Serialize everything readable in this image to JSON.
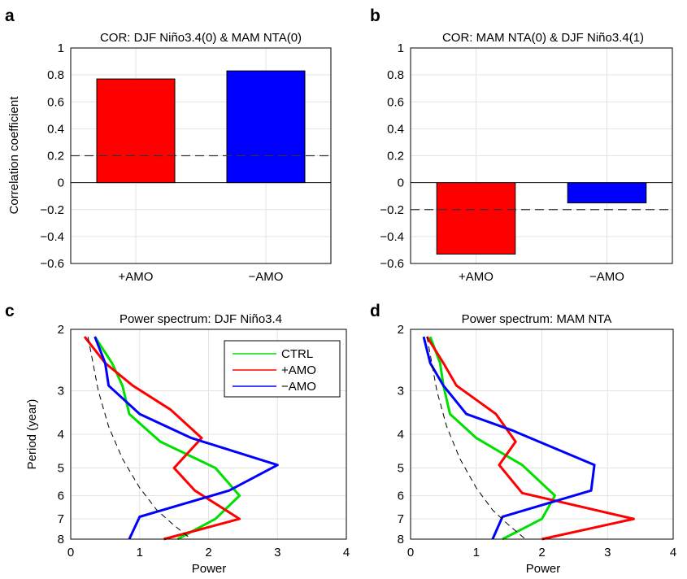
{
  "chart_data": [
    {
      "panel": "a",
      "type": "bar",
      "title": "COR: DJF Niño3.4(0) & MAM NTA(0)",
      "ylabel": "Correlation coefficient",
      "xlabel": "",
      "categories": [
        "+AMO",
        "−AMO"
      ],
      "values": [
        0.77,
        0.83
      ],
      "colors": [
        "#ff0000",
        "#0000ff"
      ],
      "ylim": [
        -0.6,
        1
      ],
      "yticks": [
        -0.6,
        -0.4,
        -0.2,
        0,
        0.2,
        0.4,
        0.6,
        0.8,
        1
      ],
      "ytick_labels": [
        "−0.6",
        "−0.4",
        "−0.2",
        "0",
        "0.2",
        "0.4",
        "0.6",
        "0.8",
        "1"
      ],
      "reference_line": 0.2,
      "grid": true
    },
    {
      "panel": "b",
      "type": "bar",
      "title": "COR: MAM NTA(0) & DJF Niño3.4(1)",
      "ylabel": "",
      "xlabel": "",
      "categories": [
        "+AMO",
        "−AMO"
      ],
      "values": [
        -0.53,
        -0.15
      ],
      "colors": [
        "#ff0000",
        "#0000ff"
      ],
      "ylim": [
        -0.6,
        1
      ],
      "yticks": [
        -0.6,
        -0.4,
        -0.2,
        0,
        0.2,
        0.4,
        0.6,
        0.8,
        1
      ],
      "ytick_labels": [
        "−0.6",
        "−0.4",
        "−0.2",
        "0",
        "0.2",
        "0.4",
        "0.6",
        "0.8",
        "1"
      ],
      "reference_line": -0.2,
      "grid": true
    },
    {
      "panel": "c",
      "type": "line",
      "title": "Power spectrum: DJF Niño3.4",
      "xlabel": "Power",
      "ylabel": "Period (year)",
      "xlim": [
        0,
        4
      ],
      "ylim": [
        2,
        8
      ],
      "xticks": [
        0,
        1,
        2,
        3,
        4
      ],
      "yticks": [
        2,
        3,
        4,
        5,
        6,
        7,
        8
      ],
      "y_scale": "log",
      "y_reversed": true,
      "legend": "top-right",
      "grid": true,
      "series": [
        {
          "name": "CTRL",
          "color": "#00e000",
          "x": [
            0.35,
            0.6,
            0.75,
            0.85,
            1.3,
            2.1,
            2.45,
            2.1,
            1.55
          ],
          "y": [
            2.1,
            2.5,
            2.9,
            3.5,
            4.2,
            5.0,
            6.0,
            7.0,
            8.0
          ]
        },
        {
          "name": "+AMO",
          "color": "#ff0000",
          "x": [
            0.2,
            0.5,
            0.9,
            1.45,
            1.9,
            1.5,
            1.8,
            2.45,
            1.35
          ],
          "y": [
            2.1,
            2.5,
            2.9,
            3.4,
            4.1,
            5.0,
            5.8,
            7.0,
            8.0
          ]
        },
        {
          "name": "−AMO",
          "color": "#0000ff",
          "x": [
            0.35,
            0.5,
            0.55,
            1.0,
            1.75,
            3.0,
            2.3,
            1.0,
            0.85
          ],
          "y": [
            2.1,
            2.5,
            2.9,
            3.5,
            4.1,
            4.9,
            5.8,
            6.9,
            8.0
          ]
        },
        {
          "name": "",
          "color": "#000000",
          "dashed": true,
          "x": [
            0.25,
            0.4,
            0.55,
            0.75,
            1.0,
            1.25,
            1.5,
            1.75
          ],
          "y": [
            2.1,
            3.0,
            3.8,
            4.7,
            5.7,
            6.6,
            7.3,
            8.0
          ]
        }
      ]
    },
    {
      "panel": "d",
      "type": "line",
      "title": "Power spectrum: MAM NTA",
      "xlabel": "Power",
      "ylabel": "",
      "xlim": [
        0,
        4
      ],
      "ylim": [
        2,
        8
      ],
      "xticks": [
        0,
        1,
        2,
        3,
        4
      ],
      "yticks": [
        2,
        3,
        4,
        5,
        6,
        7,
        8
      ],
      "y_scale": "log",
      "y_reversed": true,
      "grid": true,
      "series": [
        {
          "name": "CTRL",
          "color": "#00e000",
          "x": [
            0.3,
            0.45,
            0.5,
            0.6,
            1.0,
            1.7,
            2.2,
            2.0,
            1.4
          ],
          "y": [
            2.1,
            2.5,
            2.9,
            3.5,
            4.1,
            4.9,
            6.0,
            7.0,
            8.0
          ]
        },
        {
          "name": "+AMO",
          "color": "#ff0000",
          "x": [
            0.25,
            0.5,
            0.7,
            1.3,
            1.6,
            1.35,
            1.7,
            3.4,
            2.0
          ],
          "y": [
            2.1,
            2.5,
            2.9,
            3.5,
            4.2,
            4.9,
            5.9,
            7.0,
            8.0
          ]
        },
        {
          "name": "−AMO",
          "color": "#0000ff",
          "x": [
            0.2,
            0.3,
            0.5,
            0.85,
            1.55,
            2.8,
            2.75,
            1.4,
            1.25
          ],
          "y": [
            2.1,
            2.5,
            2.9,
            3.5,
            3.9,
            4.9,
            5.8,
            6.9,
            8.0
          ]
        },
        {
          "name": "",
          "color": "#000000",
          "dashed": true,
          "x": [
            0.25,
            0.4,
            0.55,
            0.75,
            1.0,
            1.25,
            1.5,
            1.75
          ],
          "y": [
            2.1,
            3.0,
            3.8,
            4.7,
            5.7,
            6.6,
            7.3,
            8.0
          ]
        }
      ]
    }
  ]
}
